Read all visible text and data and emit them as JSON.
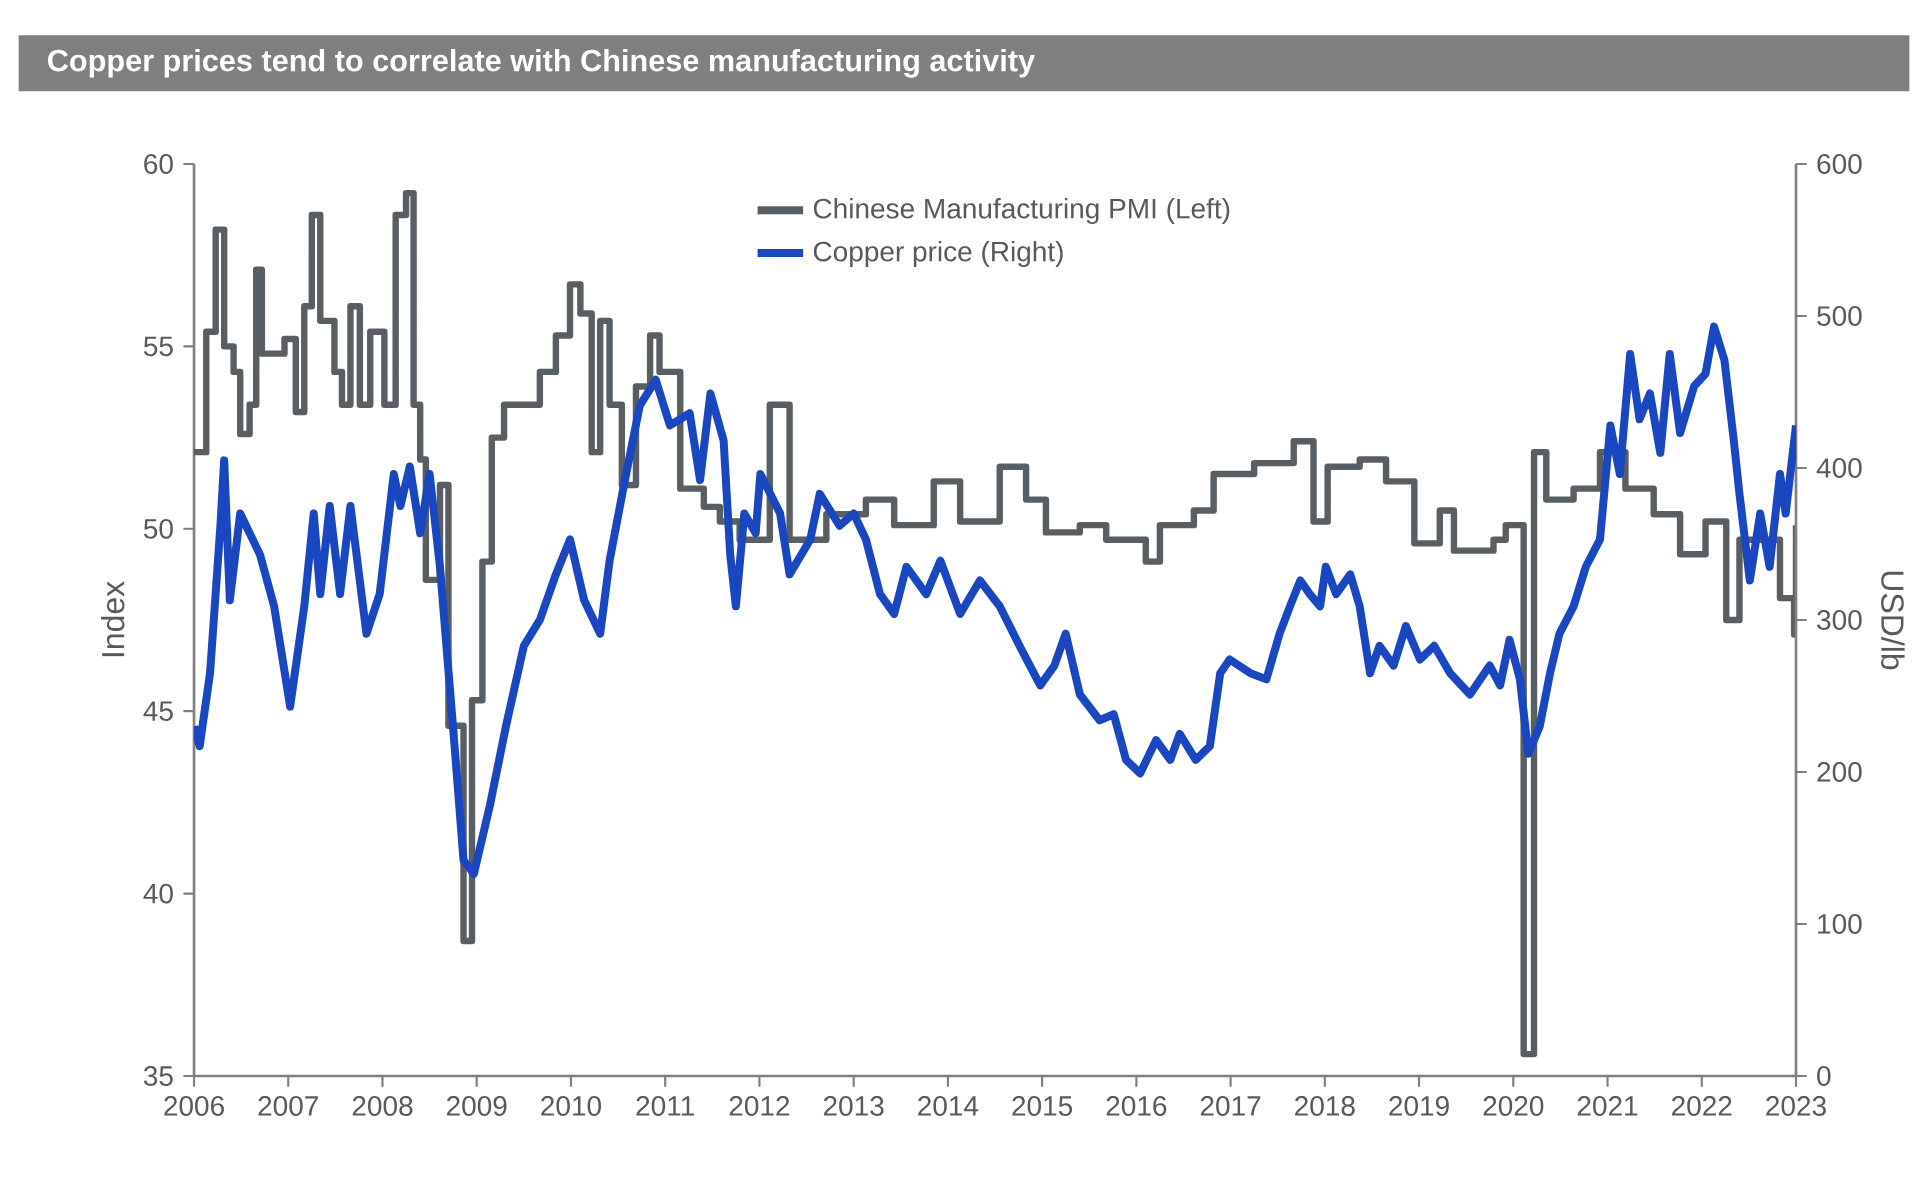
{
  "chart_data": {
    "type": "line",
    "title": "Copper prices tend to correlate with Chinese manufacturing activity",
    "ylabel": "Index",
    "y2label": "USD/lb",
    "xlim": [
      2006,
      2023
    ],
    "xticks": [
      2006,
      2007,
      2008,
      2009,
      2010,
      2011,
      2012,
      2013,
      2014,
      2015,
      2016,
      2017,
      2018,
      2019,
      2020,
      2021,
      2022,
      2023
    ],
    "ylim": [
      35,
      60
    ],
    "yticks": [
      35,
      40,
      45,
      50,
      55,
      60
    ],
    "y2lim": [
      0,
      600
    ],
    "y2ticks": [
      0,
      100,
      200,
      300,
      400,
      500,
      600
    ],
    "legend": "top",
    "grid": false,
    "series": [
      {
        "name": "Chinese Manufacturing PMI (Left)",
        "type": "step",
        "color": "#595e63",
        "x": [
          2006.0,
          2006.13,
          2006.23,
          2006.32,
          2006.42,
          2006.49,
          2006.59,
          2006.66,
          2006.72,
          2006.96,
          2007.08,
          2007.17,
          2007.25,
          2007.34,
          2007.49,
          2007.57,
          2007.66,
          2007.76,
          2007.87,
          2008.02,
          2008.14,
          2008.25,
          2008.33,
          2008.4,
          2008.46,
          2008.61,
          2008.7,
          2008.86,
          2008.95,
          2009.06,
          2009.16,
          2009.29,
          2009.67,
          2009.84,
          2009.99,
          2010.1,
          2010.22,
          2010.31,
          2010.41,
          2010.54,
          2010.69,
          2010.84,
          2010.94,
          2011.16,
          2011.41,
          2011.58,
          2011.79,
          2012.11,
          2012.32,
          2012.71,
          2013.13,
          2013.43,
          2013.85,
          2014.13,
          2014.55,
          2014.83,
          2015.04,
          2015.4,
          2015.68,
          2016.1,
          2016.25,
          2016.61,
          2016.82,
          2017.25,
          2017.67,
          2017.88,
          2018.03,
          2018.37,
          2018.65,
          2018.95,
          2019.22,
          2019.37,
          2019.79,
          2019.92,
          2020.11,
          2020.22,
          2020.35,
          2020.64,
          2020.92,
          2021.19,
          2021.49,
          2021.77,
          2022.04,
          2022.26,
          2022.4,
          2022.83,
          2022.98,
          2023.0
        ],
        "values": [
          52.1,
          55.4,
          58.2,
          55.0,
          54.3,
          52.6,
          53.4,
          57.1,
          54.8,
          55.2,
          53.2,
          56.1,
          58.6,
          55.7,
          54.3,
          53.4,
          56.1,
          53.4,
          55.4,
          53.4,
          58.6,
          59.2,
          53.4,
          51.9,
          48.6,
          51.2,
          44.6,
          38.7,
          45.3,
          49.1,
          52.5,
          53.4,
          54.3,
          55.3,
          56.7,
          55.9,
          52.1,
          55.7,
          53.4,
          51.2,
          53.9,
          55.3,
          54.3,
          51.1,
          50.6,
          50.2,
          49.7,
          53.4,
          49.7,
          50.4,
          50.8,
          50.1,
          51.3,
          50.2,
          51.7,
          50.8,
          49.9,
          50.1,
          49.7,
          49.1,
          50.1,
          50.5,
          51.5,
          51.8,
          52.4,
          50.2,
          51.7,
          51.9,
          51.3,
          49.6,
          50.5,
          49.4,
          49.7,
          50.1,
          35.6,
          52.1,
          50.8,
          51.1,
          52.1,
          51.1,
          50.4,
          49.3,
          50.2,
          47.5,
          49.7,
          48.1,
          47.1,
          50.1
        ]
      },
      {
        "name": "Copper price (Right)",
        "type": "line",
        "axis": "y2",
        "color": "#1a47c0",
        "x": [
          2006.0,
          2006.06,
          2006.17,
          2006.28,
          2006.32,
          2006.38,
          2006.49,
          2006.7,
          2006.85,
          2007.02,
          2007.17,
          2007.27,
          2007.34,
          2007.44,
          2007.55,
          2007.66,
          2007.83,
          2007.97,
          2008.12,
          2008.19,
          2008.29,
          2008.4,
          2008.5,
          2008.61,
          2008.76,
          2008.86,
          2008.97,
          2009.14,
          2009.31,
          2009.5,
          2009.67,
          2009.84,
          2009.99,
          2010.14,
          2010.31,
          2010.41,
          2010.56,
          2010.73,
          2010.9,
          2011.05,
          2011.26,
          2011.37,
          2011.48,
          2011.62,
          2011.69,
          2011.75,
          2011.84,
          2011.96,
          2012.01,
          2012.22,
          2012.32,
          2012.54,
          2012.64,
          2012.85,
          2013.0,
          2013.13,
          2013.28,
          2013.43,
          2013.56,
          2013.77,
          2013.92,
          2014.13,
          2014.34,
          2014.55,
          2014.76,
          2014.98,
          2015.13,
          2015.25,
          2015.4,
          2015.61,
          2015.76,
          2015.89,
          2016.04,
          2016.21,
          2016.36,
          2016.46,
          2016.63,
          2016.78,
          2016.89,
          2016.99,
          2017.21,
          2017.38,
          2017.52,
          2017.63,
          2017.74,
          2017.84,
          2017.95,
          2018.01,
          2018.12,
          2018.27,
          2018.37,
          2018.48,
          2018.58,
          2018.73,
          2018.86,
          2019.01,
          2019.16,
          2019.33,
          2019.54,
          2019.75,
          2019.86,
          2019.96,
          2020.07,
          2020.16,
          2020.28,
          2020.39,
          2020.49,
          2020.64,
          2020.77,
          2020.92,
          2021.03,
          2021.13,
          2021.24,
          2021.34,
          2021.45,
          2021.56,
          2021.66,
          2021.77,
          2021.92,
          2022.04,
          2022.13,
          2022.24,
          2022.34,
          2022.4,
          2022.51,
          2022.62,
          2022.72,
          2022.83,
          2022.89,
          2023.0
        ],
        "values": [
          230,
          217,
          265,
          362,
          405,
          313,
          370,
          343,
          309,
          243,
          309,
          370,
          317,
          375,
          317,
          375,
          291,
          317,
          396,
          375,
          401,
          357,
          396,
          335,
          221,
          142,
          133,
          178,
          230,
          283,
          300,
          330,
          353,
          313,
          291,
          339,
          388,
          441,
          458,
          428,
          436,
          392,
          449,
          418,
          343,
          309,
          370,
          357,
          396,
          370,
          330,
          353,
          383,
          362,
          370,
          353,
          317,
          304,
          335,
          317,
          339,
          304,
          326,
          309,
          283,
          257,
          270,
          291,
          251,
          234,
          238,
          208,
          199,
          221,
          208,
          225,
          208,
          217,
          265,
          274,
          265,
          261,
          291,
          309,
          326,
          317,
          309,
          335,
          317,
          330,
          309,
          265,
          283,
          270,
          296,
          274,
          283,
          265,
          251,
          270,
          257,
          287,
          261,
          212,
          230,
          265,
          291,
          309,
          335,
          353,
          428,
          396,
          475,
          432,
          449,
          410,
          475,
          423,
          454,
          462,
          493,
          471,
          418,
          383,
          326,
          370,
          335,
          396,
          370,
          428
        ]
      }
    ]
  }
}
